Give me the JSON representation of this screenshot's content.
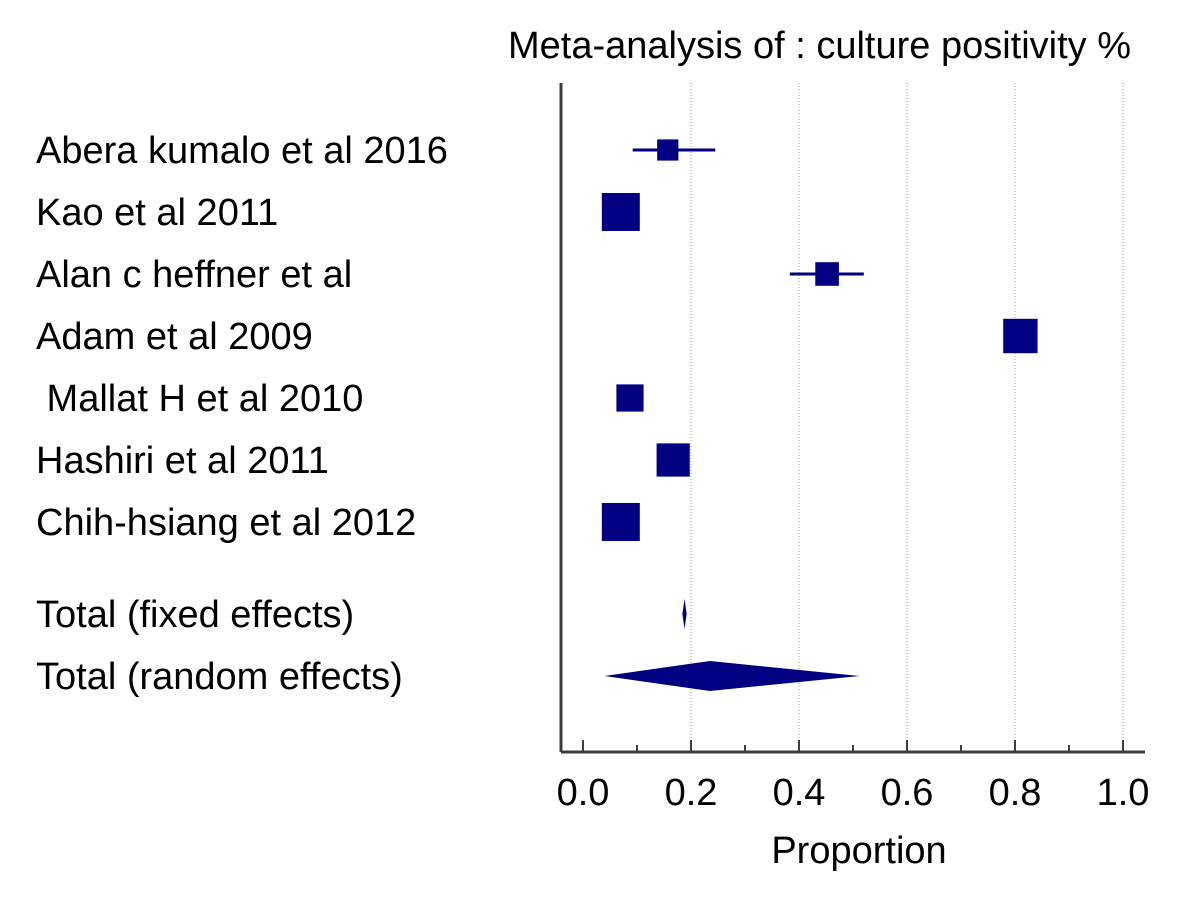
{
  "chart_data": {
    "type": "forest",
    "title": "Meta-analysis of :  culture positivity %",
    "xlabel": "Proportion",
    "xlim": [
      0.0,
      1.0
    ],
    "xticks": [
      "0.0",
      "0.2",
      "0.4",
      "0.6",
      "0.8",
      "1.0"
    ],
    "xtick_values": [
      0.0,
      0.2,
      0.4,
      0.6,
      0.8,
      1.0
    ],
    "minor_tick_step": 0.1,
    "gridlines": true,
    "marker_color": "#000080",
    "studies": [
      {
        "name": "Abera kumalo et al 2016",
        "estimate": 0.157,
        "ci_low": 0.092,
        "ci_high": 0.245,
        "weight": 0.3
      },
      {
        "name": "Kao et al 2011",
        "estimate": 0.07,
        "ci_low": 0.064,
        "ci_high": 0.077,
        "weight": 1.0
      },
      {
        "name": "Alan c heffner et al",
        "estimate": 0.452,
        "ci_low": 0.383,
        "ci_high": 0.52,
        "weight": 0.4
      },
      {
        "name": "Adam et al 2009",
        "estimate": 0.81,
        "ci_low": 0.795,
        "ci_high": 0.825,
        "weight": 0.85
      },
      {
        "name": " Mallat H et al 2010",
        "estimate": 0.087,
        "ci_low": 0.07,
        "ci_high": 0.105,
        "weight": 0.55
      },
      {
        "name": "Hashiri et al 2011",
        "estimate": 0.167,
        "ci_low": 0.155,
        "ci_high": 0.18,
        "weight": 0.8
      },
      {
        "name": "Chih-hsiang et al 2012",
        "estimate": 0.07,
        "ci_low": 0.064,
        "ci_high": 0.077,
        "weight": 1.0
      }
    ],
    "totals": [
      {
        "name": "Total (fixed effects)",
        "estimate": 0.188,
        "ci_low": 0.184,
        "ci_high": 0.192
      },
      {
        "name": "Total (random effects)",
        "estimate": 0.235,
        "ci_low": 0.04,
        "ci_high": 0.512
      }
    ]
  }
}
